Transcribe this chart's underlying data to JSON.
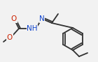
{
  "bg_color": "#f2f2f2",
  "bond_color": "#303030",
  "O_color": "#cc2200",
  "N_color": "#1144cc",
  "bond_width": 1.3,
  "font_size": 7.5,
  "figsize": [
    1.4,
    0.89
  ],
  "dpi": 100,
  "xlim": [
    0,
    140
  ],
  "ylim": [
    0,
    89
  ]
}
